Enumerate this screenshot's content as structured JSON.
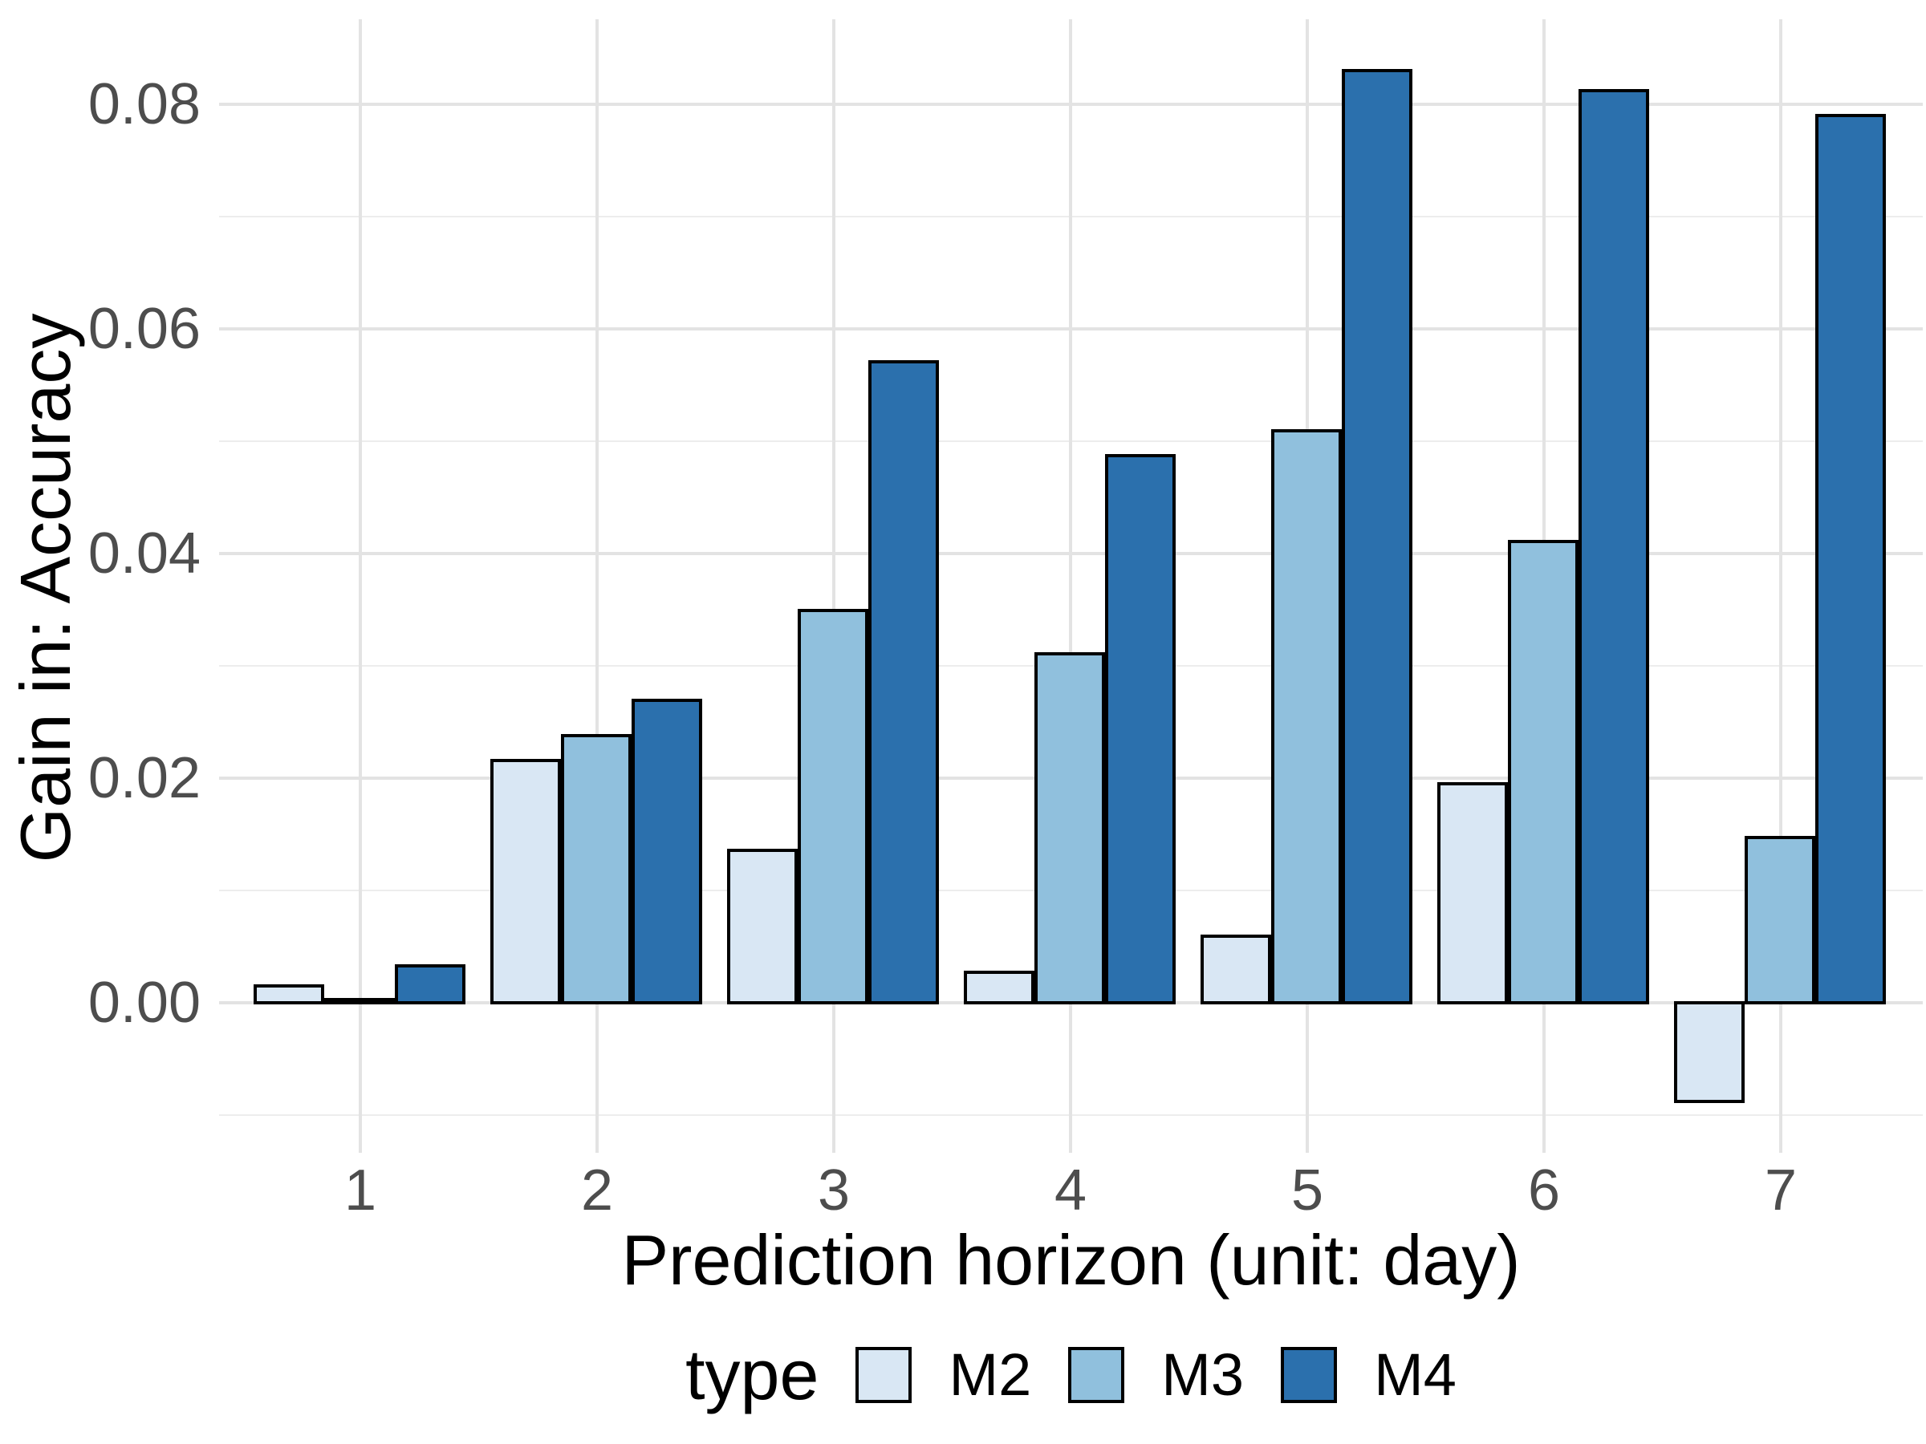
{
  "chart_data": {
    "type": "bar",
    "title": "",
    "xlabel": "Prediction horizon (unit: day)",
    "ylabel": "Gain in: Accuracy",
    "categories": [
      "1",
      "2",
      "3",
      "4",
      "5",
      "6",
      "7"
    ],
    "series": [
      {
        "name": "M2",
        "color": "#d9e7f4",
        "values": [
          0.0015,
          0.0216,
          0.0136,
          0.0027,
          0.0059,
          0.0195,
          -0.0088
        ]
      },
      {
        "name": "M3",
        "color": "#90c0dd",
        "values": [
          0.0003,
          0.0238,
          0.0349,
          0.0311,
          0.0509,
          0.0411,
          0.0147
        ]
      },
      {
        "name": "M4",
        "color": "#2b70ad",
        "values": [
          0.0033,
          0.0269,
          0.0571,
          0.0487,
          0.083,
          0.0812,
          0.079
        ]
      }
    ],
    "bar_outline_color": "#000000",
    "y_ticks": [
      {
        "label": "0.00",
        "value": 0.0
      },
      {
        "label": "0.02",
        "value": 0.02
      },
      {
        "label": "0.04",
        "value": 0.04
      },
      {
        "label": "0.06",
        "value": 0.06
      },
      {
        "label": "0.08",
        "value": 0.08
      }
    ],
    "minor_grid_values": [
      -0.01,
      0.01,
      0.03,
      0.05,
      0.07
    ],
    "ylim": [
      -0.0135,
      0.0876
    ],
    "grid": "on",
    "grid_color_major": "#e3e3e3",
    "grid_color_minor": "#ededed",
    "tick_label_color": "#4d4d4d",
    "legend": {
      "title": "type",
      "position": "bottom",
      "entries": [
        "M2",
        "M3",
        "M4"
      ]
    }
  }
}
